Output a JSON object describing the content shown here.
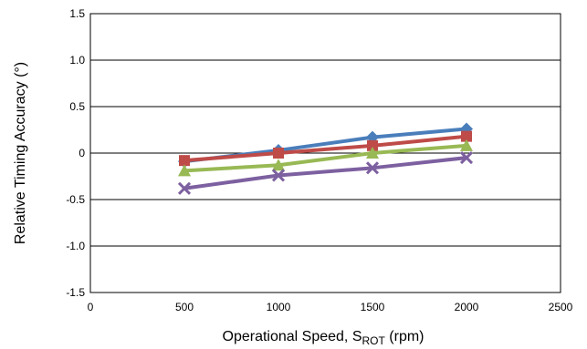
{
  "chart_data": {
    "type": "line",
    "title": "",
    "xlabel": {
      "main": "Operational Speed, S",
      "sub": "ROT",
      "unit": " (rpm)"
    },
    "ylabel": "Relative Timing Accuracy (°)",
    "xlim": [
      0,
      2500
    ],
    "ylim": [
      -1.5,
      1.5
    ],
    "x_ticks": [
      0,
      500,
      1000,
      1500,
      2000,
      2500
    ],
    "x_tick_labels": [
      "0",
      "500",
      "1000",
      "1500",
      "2000",
      "2500"
    ],
    "y_ticks": [
      1.5,
      1.0,
      0.5,
      0,
      -0.5,
      -1.0,
      -1.5
    ],
    "y_tick_labels": [
      "1.5",
      "1.0",
      "0.5",
      "0",
      "-0.5",
      "-1.0",
      "-1.5"
    ],
    "grid": "horizontal",
    "legend": "none",
    "x": [
      500,
      1000,
      1500,
      2000
    ],
    "series": [
      {
        "color": "#4A7EBB",
        "marker": "diamond",
        "values": [
          -0.09,
          0.03,
          0.17,
          0.26
        ]
      },
      {
        "color": "#BE4B48",
        "marker": "square",
        "values": [
          -0.08,
          0.0,
          0.08,
          0.18
        ]
      },
      {
        "color": "#98B954",
        "marker": "triangle",
        "values": [
          -0.19,
          -0.13,
          0.0,
          0.08
        ]
      },
      {
        "color": "#7D60A0",
        "marker": "x",
        "values": [
          -0.38,
          -0.24,
          -0.16,
          -0.05
        ]
      }
    ]
  }
}
